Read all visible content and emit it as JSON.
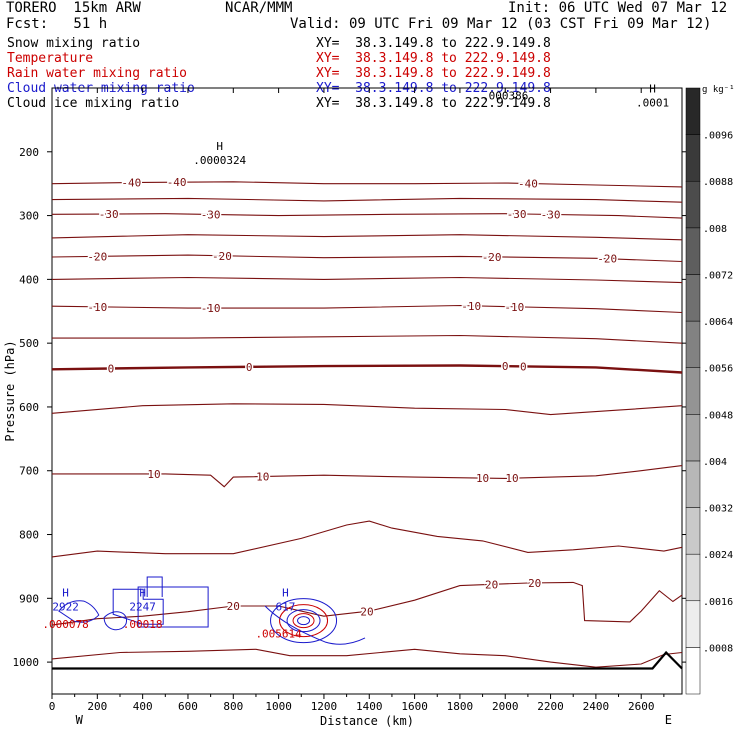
{
  "header": {
    "model": "TORERO  15km ARW",
    "org": "NCAR/MMM",
    "init": "Init: 06 UTC Wed 07 Mar 12",
    "fcst": "Fcst:   51 h",
    "valid": "Valid: 09 UTC Fri 09 Mar 12 (03 CST Fri 09 Mar 12)"
  },
  "fields": [
    {
      "name": "Snow mixing ratio",
      "color": "#000000",
      "xy": "XY=  38.3.149.8 to 222.9.149.8"
    },
    {
      "name": "Temperature",
      "color": "#cc0000",
      "xy": "XY=  38.3.149.8 to 222.9.149.8"
    },
    {
      "name": "Rain water mixing ratio",
      "color": "#cc0000",
      "xy": "XY=  38.3.149.8 to 222.9.149.8"
    },
    {
      "name": "Cloud water mixing ratio",
      "color": "#1a1acc",
      "xy": "XY=  38.3.149.8 to 222.9.149.8"
    },
    {
      "name": "Cloud ice mixing ratio",
      "color": "#000000",
      "xy": "XY=  38.3.149.8 to 222.9.149.8"
    }
  ],
  "colorbar": {
    "unit": "g kg⁻¹",
    "levels": [
      ".0008",
      ".0016",
      ".0024",
      ".0032",
      ".004",
      ".0048",
      ".0056",
      ".0064",
      ".0072",
      ".008",
      ".0088",
      ".0096"
    ]
  },
  "chart_data": {
    "type": "line",
    "title": "",
    "xlabel": "Distance (km)",
    "ylabel": "Pressure (hPa)",
    "xlim": [
      0,
      2780
    ],
    "ylim": [
      1050,
      100
    ],
    "xticks": [
      0,
      200,
      400,
      600,
      800,
      1000,
      1200,
      1400,
      1600,
      1800,
      2000,
      2200,
      2400,
      2600
    ],
    "yticks": [
      200,
      300,
      400,
      500,
      600,
      700,
      800,
      900,
      1000
    ],
    "endpoints": {
      "left": "W",
      "right": "E"
    },
    "isotherm_color": "#7a1010",
    "isotherms": [
      {
        "level": -40,
        "label": "-40",
        "points": [
          [
            0,
            250
          ],
          [
            400,
            248
          ],
          [
            800,
            247
          ],
          [
            1200,
            250
          ],
          [
            1600,
            250
          ],
          [
            2000,
            249
          ],
          [
            2400,
            252
          ],
          [
            2780,
            255
          ]
        ],
        "labels": [
          [
            350,
            -40
          ],
          [
            550,
            -40
          ],
          [
            2100,
            -40
          ]
        ]
      },
      {
        "level": -35,
        "label": "",
        "points": [
          [
            0,
            275
          ],
          [
            600,
            273
          ],
          [
            1200,
            277
          ],
          [
            1800,
            273
          ],
          [
            2400,
            275
          ],
          [
            2780,
            279
          ]
        ],
        "labels": []
      },
      {
        "level": -30,
        "label": "-30",
        "points": [
          [
            0,
            298
          ],
          [
            500,
            297
          ],
          [
            1000,
            300
          ],
          [
            1500,
            298
          ],
          [
            2000,
            297
          ],
          [
            2500,
            300
          ],
          [
            2780,
            304
          ]
        ],
        "labels": [
          [
            250,
            -30
          ],
          [
            700,
            -30
          ],
          [
            2050,
            -30
          ],
          [
            2200,
            -30
          ]
        ]
      },
      {
        "level": -25,
        "label": "",
        "points": [
          [
            0,
            335
          ],
          [
            600,
            330
          ],
          [
            1200,
            333
          ],
          [
            1800,
            330
          ],
          [
            2400,
            334
          ],
          [
            2780,
            338
          ]
        ],
        "labels": []
      },
      {
        "level": -20,
        "label": "-20",
        "points": [
          [
            0,
            365
          ],
          [
            600,
            362
          ],
          [
            1200,
            366
          ],
          [
            1800,
            364
          ],
          [
            2400,
            367
          ],
          [
            2780,
            372
          ]
        ],
        "labels": [
          [
            200,
            -20
          ],
          [
            750,
            -20
          ],
          [
            1940,
            -20
          ],
          [
            2450,
            -20
          ]
        ]
      },
      {
        "level": -15,
        "label": "",
        "points": [
          [
            0,
            400
          ],
          [
            600,
            397
          ],
          [
            1200,
            400
          ],
          [
            1800,
            397
          ],
          [
            2400,
            401
          ],
          [
            2780,
            405
          ]
        ],
        "labels": []
      },
      {
        "level": -10,
        "label": "-10",
        "points": [
          [
            0,
            442
          ],
          [
            600,
            445
          ],
          [
            1200,
            445
          ],
          [
            1800,
            441
          ],
          [
            2400,
            446
          ],
          [
            2780,
            452
          ]
        ],
        "labels": [
          [
            200,
            -10
          ],
          [
            700,
            -10
          ],
          [
            1850,
            -10
          ],
          [
            2040,
            -10
          ]
        ]
      },
      {
        "level": -5,
        "label": "",
        "points": [
          [
            0,
            492
          ],
          [
            600,
            492
          ],
          [
            1200,
            490
          ],
          [
            1800,
            488
          ],
          [
            2400,
            493
          ],
          [
            2780,
            500
          ]
        ],
        "labels": []
      },
      {
        "level": 0,
        "label": "0",
        "points": [
          [
            0,
            541
          ],
          [
            600,
            538
          ],
          [
            1200,
            536
          ],
          [
            1800,
            535
          ],
          [
            2400,
            538
          ],
          [
            2780,
            546
          ]
        ],
        "labels": [
          [
            260,
            0
          ],
          [
            870,
            0
          ],
          [
            2000,
            0
          ],
          [
            2080,
            0
          ]
        ]
      },
      {
        "level": 5,
        "label": "",
        "points": [
          [
            0,
            610
          ],
          [
            400,
            598
          ],
          [
            800,
            595
          ],
          [
            1200,
            596
          ],
          [
            1600,
            602
          ],
          [
            2000,
            604
          ],
          [
            2200,
            612
          ],
          [
            2500,
            605
          ],
          [
            2780,
            598
          ]
        ],
        "labels": []
      },
      {
        "level": 10,
        "label": "10",
        "points": [
          [
            0,
            705
          ],
          [
            500,
            705
          ],
          [
            700,
            707
          ],
          [
            760,
            725
          ],
          [
            800,
            710
          ],
          [
            1200,
            707
          ],
          [
            1600,
            710
          ],
          [
            2000,
            712
          ],
          [
            2400,
            708
          ],
          [
            2600,
            700
          ],
          [
            2780,
            692
          ]
        ],
        "labels": [
          [
            450,
            10
          ],
          [
            930,
            10
          ],
          [
            1900,
            10
          ],
          [
            2030,
            10
          ]
        ]
      },
      {
        "level": 15,
        "label": "",
        "points": [
          [
            0,
            835
          ],
          [
            200,
            826
          ],
          [
            500,
            830
          ],
          [
            800,
            830
          ],
          [
            1100,
            806
          ],
          [
            1300,
            785
          ],
          [
            1400,
            779
          ],
          [
            1500,
            790
          ],
          [
            1700,
            803
          ],
          [
            1900,
            810
          ],
          [
            2100,
            828
          ],
          [
            2300,
            824
          ],
          [
            2500,
            818
          ],
          [
            2700,
            826
          ],
          [
            2780,
            820
          ]
        ],
        "labels": []
      },
      {
        "level": 20,
        "label": "20",
        "points": [
          [
            0,
            942
          ],
          [
            200,
            932
          ],
          [
            400,
            928
          ],
          [
            600,
            921
          ],
          [
            800,
            912
          ],
          [
            1000,
            912
          ],
          [
            1200,
            928
          ],
          [
            1400,
            920
          ],
          [
            1600,
            903
          ],
          [
            1800,
            880
          ],
          [
            2100,
            876
          ],
          [
            2300,
            875
          ],
          [
            2340,
            880
          ],
          [
            2350,
            935
          ],
          [
            2550,
            937
          ],
          [
            2600,
            920
          ],
          [
            2680,
            888
          ],
          [
            2740,
            905
          ],
          [
            2780,
            895
          ]
        ],
        "labels": [
          [
            800,
            20
          ],
          [
            1390,
            20
          ],
          [
            1940,
            20
          ],
          [
            2130,
            20
          ]
        ]
      },
      {
        "level": 25,
        "label": "",
        "points": [
          [
            0,
            995
          ],
          [
            300,
            985
          ],
          [
            600,
            983
          ],
          [
            900,
            980
          ],
          [
            1050,
            990
          ],
          [
            1300,
            990
          ],
          [
            1600,
            980
          ],
          [
            1800,
            987
          ],
          [
            2000,
            990
          ],
          [
            2200,
            1000
          ],
          [
            2400,
            1008
          ],
          [
            2600,
            1003
          ],
          [
            2700,
            988
          ],
          [
            2780,
            985
          ]
        ],
        "labels": []
      }
    ],
    "terrain": [
      [
        0,
        1010
      ],
      [
        2650,
        1010
      ],
      [
        2710,
        985
      ],
      [
        2780,
        1010
      ]
    ],
    "extrema": [
      {
        "x": 740,
        "p": 200,
        "marker": "H",
        "value": ".0000324",
        "color": "#000000"
      },
      {
        "x": 2000,
        "p": 112,
        "marker": "",
        "value": ".000386",
        "color": "#000000"
      },
      {
        "x": 2650,
        "p": 110,
        "marker": "H",
        "value": ".0001",
        "color": "#000000"
      },
      {
        "x": 60,
        "p": 900,
        "marker": "H",
        "value": "2922",
        "color": "#1a1acc"
      },
      {
        "x": 400,
        "p": 900,
        "marker": "H",
        "value": "2247",
        "color": "#1a1acc"
      },
      {
        "x": 1030,
        "p": 900,
        "marker": "H",
        "value": "617",
        "color": "#1a1acc"
      },
      {
        "x": 60,
        "p": 940,
        "marker": "",
        "value": ".000078",
        "color": "#cc0000"
      },
      {
        "x": 400,
        "p": 940,
        "marker": "",
        "value": ".00018",
        "color": "#cc0000"
      },
      {
        "x": 1000,
        "p": 955,
        "marker": "",
        "value": ".005614",
        "color": "#cc0000"
      }
    ]
  }
}
